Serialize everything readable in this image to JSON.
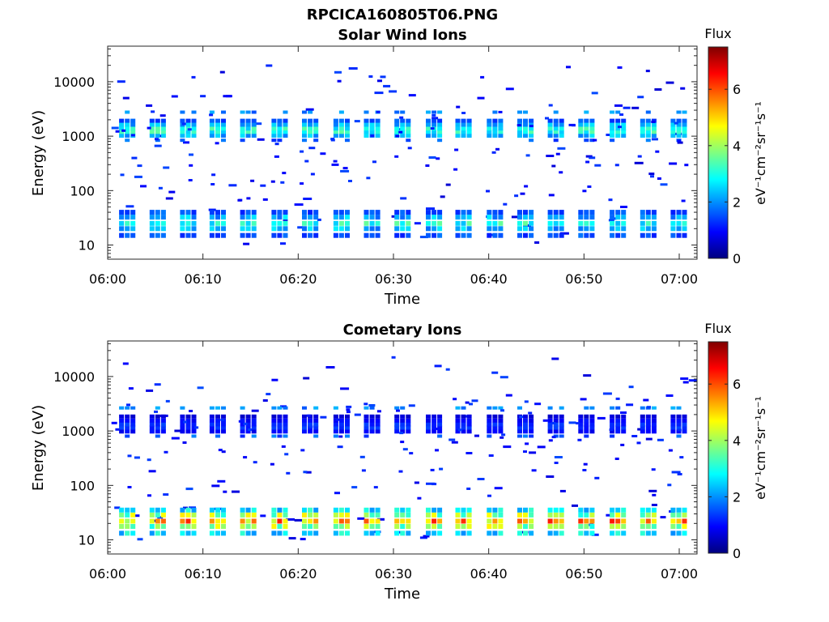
{
  "figure": {
    "title": "RPCICA160805T06.PNG"
  },
  "chart_data": [
    {
      "type": "heatmap",
      "title": "Solar Wind Ions",
      "xlabel": "Time",
      "ylabel": "Energy (eV)",
      "x_ticks": [
        "06:00",
        "06:10",
        "06:20",
        "06:30",
        "06:40",
        "06:50",
        "07:00"
      ],
      "y_ticks": [
        "10",
        "100",
        "1000",
        "10000"
      ],
      "y_scale": "log",
      "ylim": [
        5.5,
        45000
      ],
      "colorbar": {
        "label": "Flux",
        "units": "eV⁻¹cm⁻²sr⁻¹s⁻¹",
        "ticks": [
          "0",
          "2",
          "4",
          "6"
        ],
        "range": [
          0,
          7.5
        ],
        "colormap": "jet"
      },
      "grid": false,
      "bursts_minutes": [
        1.8,
        5.0,
        8.2,
        11.3,
        14.5,
        17.8,
        21.0,
        24.3,
        27.5,
        30.7,
        34.0,
        37.1,
        40.4,
        43.6,
        46.8,
        50.0,
        53.3,
        56.5,
        59.7
      ],
      "sw_core_energy_eV": 1200,
      "sw_core_flux": 3.6,
      "cometary_low_energy_eV": 25,
      "cometary_low_flux": 3.2
    },
    {
      "type": "heatmap",
      "title": "Cometary Ions",
      "xlabel": "Time",
      "ylabel": "Energy (eV)",
      "x_ticks": [
        "06:00",
        "06:10",
        "06:20",
        "06:30",
        "06:40",
        "06:50",
        "07:00"
      ],
      "y_ticks": [
        "10",
        "100",
        "1000",
        "10000"
      ],
      "y_scale": "log",
      "ylim": [
        5.5,
        45000
      ],
      "colorbar": {
        "label": "Flux",
        "units": "eV⁻¹cm⁻²sr⁻¹s⁻¹",
        "ticks": [
          "0",
          "2",
          "4",
          "6"
        ],
        "range": [
          0,
          7.5
        ],
        "colormap": "jet"
      },
      "grid": false,
      "bursts_minutes": [
        1.8,
        5.0,
        8.2,
        11.3,
        14.5,
        17.8,
        21.0,
        24.3,
        27.5,
        30.7,
        34.0,
        37.1,
        40.4,
        43.6,
        46.8,
        50.0,
        53.3,
        56.5,
        59.7
      ],
      "sw_core_energy_eV": 1150,
      "sw_core_flux": 1.5,
      "cometary_low_energy_eV": 22,
      "cometary_low_flux": 5.6
    }
  ]
}
